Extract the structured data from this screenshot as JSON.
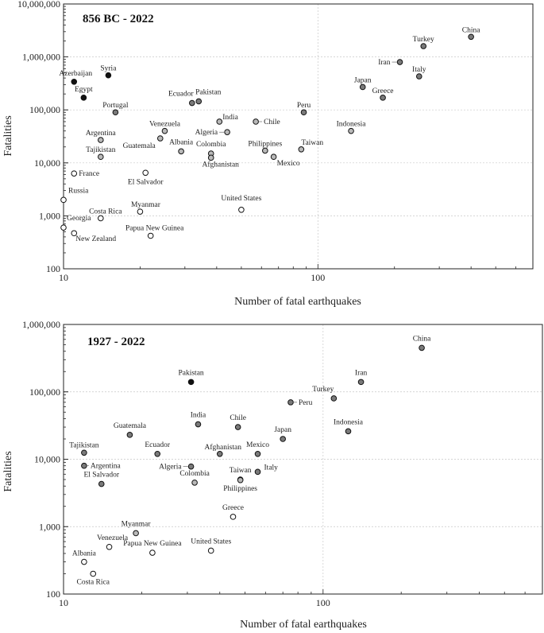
{
  "colors": {
    "dark": "#111111",
    "mid": "#7a7a7a",
    "light": "#b9b9b9",
    "hollow": "#ffffff"
  },
  "chart_data": [
    {
      "type": "scatter",
      "title": "856 BC - 2022",
      "xlabel": "Number of fatal earthquakes",
      "ylabel": "Fatalities",
      "xscale": "log",
      "yscale": "log",
      "xlim": [
        10,
        700
      ],
      "ylim": [
        100,
        10000000
      ],
      "xticks": [
        10,
        100
      ],
      "xtick_labels": [
        "10",
        "100"
      ],
      "yticks": [
        100,
        1000,
        10000,
        100000,
        1000000,
        10000000
      ],
      "ytick_labels": [
        "100",
        "1,000",
        "10,000",
        "100,000",
        "1,000,000",
        "10,000,000"
      ],
      "points": [
        {
          "label": "China",
          "x": 400,
          "y": 2400000,
          "shade": "mid"
        },
        {
          "label": "Turkey",
          "x": 260,
          "y": 1600000,
          "shade": "mid"
        },
        {
          "label": "Iran",
          "x": 210,
          "y": 800000,
          "shade": "mid"
        },
        {
          "label": "Italy",
          "x": 250,
          "y": 430000,
          "shade": "mid"
        },
        {
          "label": "Japan",
          "x": 150,
          "y": 270000,
          "shade": "mid"
        },
        {
          "label": "Greece",
          "x": 180,
          "y": 170000,
          "shade": "mid"
        },
        {
          "label": "Indonesia",
          "x": 135,
          "y": 40000,
          "shade": "light"
        },
        {
          "label": "Peru",
          "x": 88,
          "y": 90000,
          "shade": "mid"
        },
        {
          "label": "Taiwan",
          "x": 86,
          "y": 18000,
          "shade": "light"
        },
        {
          "label": "Chile",
          "x": 57,
          "y": 60000,
          "shade": "light"
        },
        {
          "label": "Philippines",
          "x": 62,
          "y": 17000,
          "shade": "light"
        },
        {
          "label": "Mexico",
          "x": 67,
          "y": 13000,
          "shade": "light"
        },
        {
          "label": "India",
          "x": 41,
          "y": 60000,
          "shade": "light"
        },
        {
          "label": "Algeria",
          "x": 44,
          "y": 38000,
          "shade": "light"
        },
        {
          "label": "Colombia",
          "x": 38,
          "y": 15000,
          "shade": "light"
        },
        {
          "label": "Afghanistan",
          "x": 38,
          "y": 12500,
          "shade": "light"
        },
        {
          "label": "Pakistan",
          "x": 34,
          "y": 145000,
          "shade": "mid"
        },
        {
          "label": "Ecuador",
          "x": 32,
          "y": 135000,
          "shade": "mid"
        },
        {
          "label": "Venezuela",
          "x": 25,
          "y": 40000,
          "shade": "light"
        },
        {
          "label": "Guatemala",
          "x": 24,
          "y": 29000,
          "shade": "light"
        },
        {
          "label": "Albania",
          "x": 29,
          "y": 16500,
          "shade": "light"
        },
        {
          "label": "El Salvador",
          "x": 21,
          "y": 6500,
          "shade": "hollow"
        },
        {
          "label": "United States",
          "x": 50,
          "y": 1300,
          "shade": "hollow"
        },
        {
          "label": "Myanmar",
          "x": 20,
          "y": 1200,
          "shade": "hollow"
        },
        {
          "label": "Papua New Guinea",
          "x": 22,
          "y": 420,
          "shade": "hollow"
        },
        {
          "label": "Syria",
          "x": 15,
          "y": 450000,
          "shade": "dark"
        },
        {
          "label": "Azerbaijan",
          "x": 11,
          "y": 340000,
          "shade": "dark"
        },
        {
          "label": "Egypt",
          "x": 12,
          "y": 170000,
          "shade": "dark"
        },
        {
          "label": "Portugal",
          "x": 16,
          "y": 90000,
          "shade": "mid"
        },
        {
          "label": "Argentina",
          "x": 14,
          "y": 27000,
          "shade": "light"
        },
        {
          "label": "Tajikistan",
          "x": 14,
          "y": 13000,
          "shade": "light"
        },
        {
          "label": "France",
          "x": 11,
          "y": 6300,
          "shade": "hollow"
        },
        {
          "label": "Russia",
          "x": 10,
          "y": 2000,
          "shade": "hollow"
        },
        {
          "label": "Costa Rica",
          "x": 14,
          "y": 900,
          "shade": "hollow"
        },
        {
          "label": "Georgia",
          "x": 10,
          "y": 600,
          "shade": "hollow"
        },
        {
          "label": "New Zealand",
          "x": 11,
          "y": 470,
          "shade": "hollow"
        }
      ]
    },
    {
      "type": "scatter",
      "title": "1927 - 2022",
      "xlabel": "Number of fatal earthquakes",
      "ylabel": "Fatalities",
      "xscale": "log",
      "yscale": "log",
      "xlim": [
        10,
        700
      ],
      "ylim": [
        100,
        1000000
      ],
      "xticks": [
        10,
        100
      ],
      "xtick_labels": [
        "10",
        "100"
      ],
      "yticks": [
        100,
        1000,
        10000,
        100000,
        1000000
      ],
      "ytick_labels": [
        "100",
        "1,000",
        "10,000",
        "100,000",
        "1,000,000"
      ],
      "points": [
        {
          "label": "China",
          "x": 240,
          "y": 450000,
          "shade": "mid"
        },
        {
          "label": "Iran",
          "x": 140,
          "y": 140000,
          "shade": "mid"
        },
        {
          "label": "Turkey",
          "x": 110,
          "y": 80000,
          "shade": "mid"
        },
        {
          "label": "Indonesia",
          "x": 125,
          "y": 26000,
          "shade": "mid"
        },
        {
          "label": "Peru",
          "x": 75,
          "y": 70000,
          "shade": "mid"
        },
        {
          "label": "Japan",
          "x": 70,
          "y": 20000,
          "shade": "mid"
        },
        {
          "label": "Mexico",
          "x": 56,
          "y": 12000,
          "shade": "mid"
        },
        {
          "label": "Italy",
          "x": 56,
          "y": 6500,
          "shade": "mid"
        },
        {
          "label": "Chile",
          "x": 47,
          "y": 30000,
          "shade": "mid"
        },
        {
          "label": "Afghanistan",
          "x": 40,
          "y": 12000,
          "shade": "mid"
        },
        {
          "label": "Taiwan",
          "x": 48,
          "y": 5000,
          "shade": "light"
        },
        {
          "label": "Philippines",
          "x": 48,
          "y": 4900,
          "shade": "light"
        },
        {
          "label": "Pakistan",
          "x": 31,
          "y": 140000,
          "shade": "dark"
        },
        {
          "label": "India",
          "x": 33,
          "y": 33000,
          "shade": "mid"
        },
        {
          "label": "Algeria",
          "x": 31,
          "y": 7800,
          "shade": "mid"
        },
        {
          "label": "Colombia",
          "x": 32,
          "y": 4500,
          "shade": "light"
        },
        {
          "label": "Ecuador",
          "x": 23,
          "y": 12000,
          "shade": "mid"
        },
        {
          "label": "Guatemala",
          "x": 18,
          "y": 23000,
          "shade": "mid"
        },
        {
          "label": "Tajikistan",
          "x": 12,
          "y": 12500,
          "shade": "mid"
        },
        {
          "label": "Argentina",
          "x": 12,
          "y": 8000,
          "shade": "mid"
        },
        {
          "label": "El Salvador",
          "x": 14,
          "y": 4300,
          "shade": "mid"
        },
        {
          "label": "Greece",
          "x": 45,
          "y": 1400,
          "shade": "hollow"
        },
        {
          "label": "Myanmar",
          "x": 19,
          "y": 800,
          "shade": "light"
        },
        {
          "label": "Venezuela",
          "x": 15,
          "y": 500,
          "shade": "hollow"
        },
        {
          "label": "Papua New Guinea",
          "x": 22,
          "y": 410,
          "shade": "hollow"
        },
        {
          "label": "United States",
          "x": 37,
          "y": 440,
          "shade": "hollow"
        },
        {
          "label": "Albania",
          "x": 12,
          "y": 300,
          "shade": "hollow"
        },
        {
          "label": "Costa Rica",
          "x": 13,
          "y": 200,
          "shade": "hollow"
        }
      ]
    }
  ]
}
